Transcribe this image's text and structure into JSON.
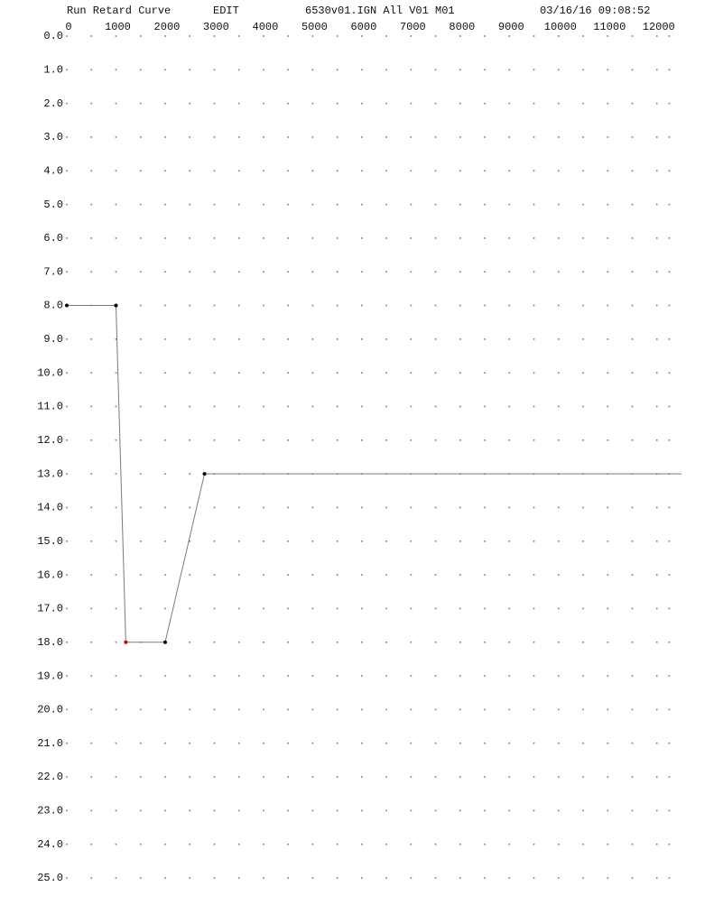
{
  "chart_data": {
    "type": "line",
    "title": "Run Retard Curve",
    "mode": "EDIT",
    "file": "6530v01.IGN All V01 M01",
    "timestamp": "03/16/16 09:08:52",
    "x": [
      0,
      1000,
      1200,
      2000,
      2800,
      12500
    ],
    "series": [
      {
        "color": "#7a7a7a",
        "values": [
          8,
          8,
          18,
          18,
          13,
          13
        ],
        "marker_colors": [
          "#000000",
          "#000000",
          "#cc0000",
          "#000000",
          "#000000",
          null
        ]
      }
    ],
    "xlim": [
      0,
      12500
    ],
    "xticks": [
      0,
      1000,
      2000,
      3000,
      4000,
      5000,
      6000,
      7000,
      8000,
      9000,
      10000,
      11000,
      12000
    ],
    "ylim": [
      0,
      25
    ],
    "yinverted": true,
    "yticks": [
      {
        "value": 0,
        "label": "0.0"
      },
      {
        "value": 1,
        "label": "1.0"
      },
      {
        "value": 2,
        "label": "2.0"
      },
      {
        "value": 3,
        "label": "3.0"
      },
      {
        "value": 4,
        "label": "4.0"
      },
      {
        "value": 5,
        "label": "5.0"
      },
      {
        "value": 6,
        "label": "6.0"
      },
      {
        "value": 7,
        "label": "7.0"
      },
      {
        "value": 8,
        "label": "8.0"
      },
      {
        "value": 9,
        "label": "9.0"
      },
      {
        "value": 10,
        "label": "10.0"
      },
      {
        "value": 11,
        "label": "11.0"
      },
      {
        "value": 12,
        "label": "12.0"
      },
      {
        "value": 13,
        "label": "13.0"
      },
      {
        "value": 14,
        "label": "14.0"
      },
      {
        "value": 15,
        "label": "15.0"
      },
      {
        "value": 16,
        "label": "16.0"
      },
      {
        "value": 17,
        "label": "17.0"
      },
      {
        "value": 18,
        "label": "18.0"
      },
      {
        "value": 19,
        "label": "19.0"
      },
      {
        "value": 20,
        "label": "20.0"
      },
      {
        "value": 21,
        "label": "21.0"
      },
      {
        "value": 22,
        "label": "22.0"
      },
      {
        "value": 23,
        "label": "23.0"
      },
      {
        "value": 24,
        "label": "24.0"
      },
      {
        "value": 25,
        "label": "25.0"
      }
    ],
    "grid": true
  }
}
